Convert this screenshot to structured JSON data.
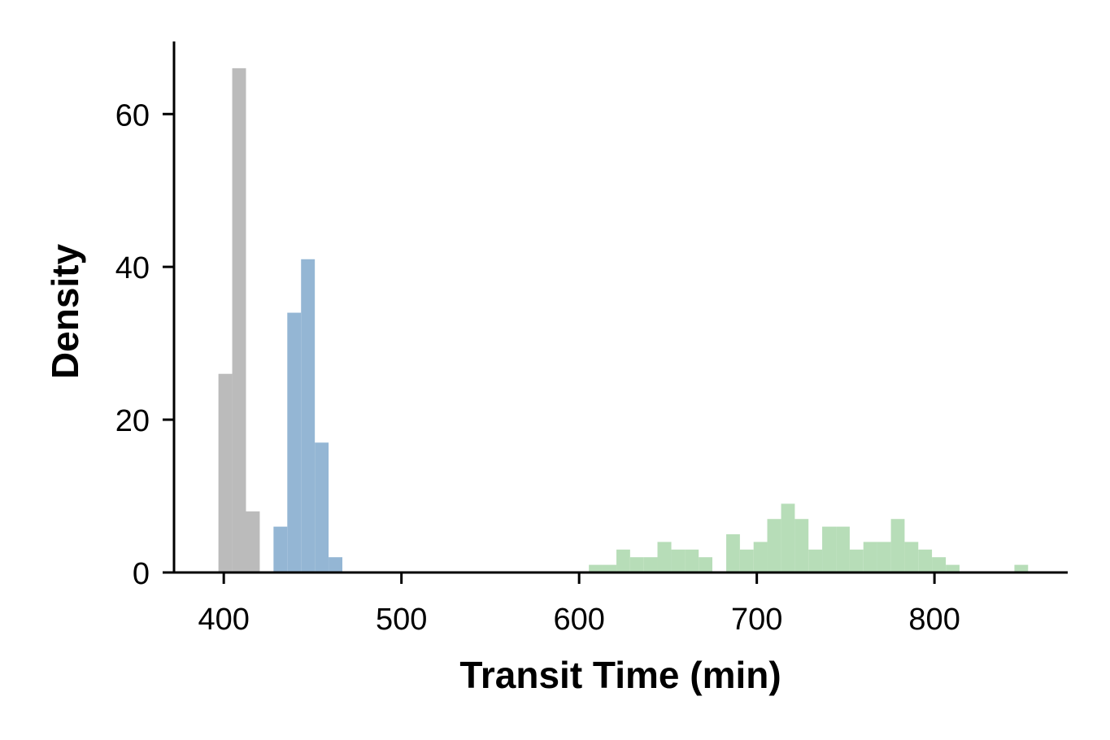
{
  "chart_data": {
    "type": "bar",
    "xlabel": "Transit Time (min)",
    "ylabel": "Density",
    "xlim": [
      372,
      875
    ],
    "ylim": [
      0,
      69.5
    ],
    "grid": false,
    "legend": "none",
    "x_ticks": [
      400,
      500,
      600,
      700,
      800
    ],
    "y_ticks": [
      0,
      20,
      40,
      60
    ],
    "series": [
      {
        "color": "#bbbbbb",
        "bin_width": 7.75,
        "bins": [
          {
            "x0": 397.0,
            "x1": 404.75,
            "value": 26
          },
          {
            "x0": 404.75,
            "x1": 412.5,
            "value": 66
          },
          {
            "x0": 412.5,
            "x1": 420.25,
            "value": 8
          }
        ]
      },
      {
        "color": "#94b6d4",
        "bin_width": 7.75,
        "bins": [
          {
            "x0": 428.0,
            "x1": 435.75,
            "value": 6
          },
          {
            "x0": 435.75,
            "x1": 443.5,
            "value": 34
          },
          {
            "x0": 443.5,
            "x1": 451.25,
            "value": 41
          },
          {
            "x0": 451.25,
            "x1": 459.0,
            "value": 17
          },
          {
            "x0": 459.0,
            "x1": 466.75,
            "value": 2
          }
        ]
      },
      {
        "color": "#b7ddb8",
        "bin_width": 7.73,
        "bins": [
          {
            "x0": 605.5,
            "x1": 613.2,
            "value": 1
          },
          {
            "x0": 613.2,
            "x1": 621.0,
            "value": 1
          },
          {
            "x0": 621.0,
            "x1": 628.7,
            "value": 3
          },
          {
            "x0": 628.7,
            "x1": 636.4,
            "value": 2
          },
          {
            "x0": 636.4,
            "x1": 644.1,
            "value": 2
          },
          {
            "x0": 644.1,
            "x1": 651.9,
            "value": 4
          },
          {
            "x0": 651.9,
            "x1": 659.6,
            "value": 3
          },
          {
            "x0": 659.6,
            "x1": 667.3,
            "value": 3
          },
          {
            "x0": 667.3,
            "x1": 675.0,
            "value": 2
          },
          {
            "x0": 675.0,
            "x1": 682.8,
            "value": 0
          },
          {
            "x0": 682.8,
            "x1": 690.5,
            "value": 5
          },
          {
            "x0": 690.5,
            "x1": 698.2,
            "value": 3
          },
          {
            "x0": 698.2,
            "x1": 705.9,
            "value": 4
          },
          {
            "x0": 705.9,
            "x1": 713.7,
            "value": 7
          },
          {
            "x0": 713.7,
            "x1": 721.4,
            "value": 9
          },
          {
            "x0": 721.4,
            "x1": 729.1,
            "value": 7
          },
          {
            "x0": 729.1,
            "x1": 736.8,
            "value": 3
          },
          {
            "x0": 736.8,
            "x1": 744.6,
            "value": 6
          },
          {
            "x0": 744.6,
            "x1": 752.3,
            "value": 6
          },
          {
            "x0": 752.3,
            "x1": 760.0,
            "value": 3
          },
          {
            "x0": 760.0,
            "x1": 767.7,
            "value": 4
          },
          {
            "x0": 767.7,
            "x1": 775.5,
            "value": 4
          },
          {
            "x0": 775.5,
            "x1": 783.2,
            "value": 7
          },
          {
            "x0": 783.2,
            "x1": 790.9,
            "value": 4
          },
          {
            "x0": 790.9,
            "x1": 798.6,
            "value": 3
          },
          {
            "x0": 798.6,
            "x1": 806.4,
            "value": 2
          },
          {
            "x0": 806.4,
            "x1": 814.1,
            "value": 1
          },
          {
            "x0": 814.1,
            "x1": 821.8,
            "value": 0
          },
          {
            "x0": 821.8,
            "x1": 829.5,
            "value": 0
          },
          {
            "x0": 829.5,
            "x1": 837.3,
            "value": 0
          },
          {
            "x0": 837.3,
            "x1": 845.0,
            "value": 0
          },
          {
            "x0": 845.0,
            "x1": 852.7,
            "value": 1
          }
        ]
      }
    ]
  }
}
